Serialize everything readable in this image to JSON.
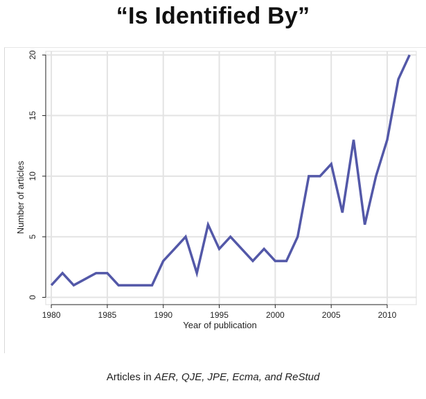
{
  "page": {
    "title": "“Is Identified By”"
  },
  "caption": {
    "prefix": "Articles in ",
    "journals": "AER, QJE, JPE, Ecma, and ReStud"
  },
  "chart_data": {
    "type": "line",
    "xlabel": "Year of publication",
    "ylabel": "Number of articles",
    "xlim": [
      1980,
      2012
    ],
    "ylim": [
      0,
      20
    ],
    "xticks": [
      1980,
      1985,
      1990,
      1995,
      2000,
      2005,
      2010
    ],
    "yticks": [
      0,
      5,
      10,
      15,
      20
    ],
    "grid": true,
    "series": [
      {
        "color": "#5358a8",
        "x": [
          1980,
          1981,
          1982,
          1983,
          1984,
          1985,
          1986,
          1987,
          1988,
          1989,
          1990,
          1991,
          1992,
          1993,
          1994,
          1995,
          1996,
          1997,
          1998,
          1999,
          2000,
          2001,
          2002,
          2003,
          2004,
          2005,
          2006,
          2007,
          2008,
          2009,
          2010,
          2011,
          2012
        ],
        "values": [
          1,
          2,
          1,
          1.5,
          2,
          2,
          1,
          1,
          1,
          1,
          3,
          4,
          5,
          2,
          6,
          4,
          5,
          4,
          3,
          4,
          3,
          3,
          5,
          10,
          10,
          11,
          7,
          13,
          6,
          10,
          13,
          18,
          20
        ]
      }
    ]
  }
}
